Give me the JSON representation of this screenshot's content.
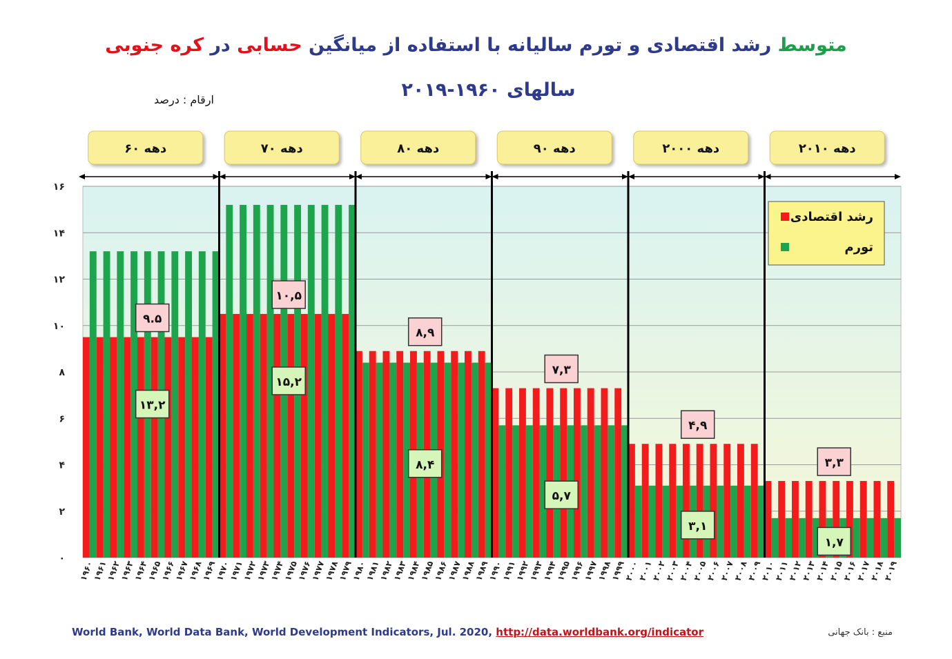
{
  "title": {
    "line1_parts": [
      {
        "text": "متوسط",
        "color": "green"
      },
      {
        "text": " رشد اقتصادی و تورم سالیانه با استفاده از میانگین ",
        "color": "blue"
      },
      {
        "text": "حسابی",
        "color": "red"
      },
      {
        "text": " در ",
        "color": "blue"
      },
      {
        "text": "کره جنوبی",
        "color": "red"
      }
    ],
    "line2": "سالهای ۱۹۶۰-۲۰۱۹"
  },
  "unit_note": "ارقام : درصد",
  "source_en": "World Bank, World Data Bank, World Development Indicators, Jul. 2020, ",
  "source_link": "http://data.worldbank.org/indicator",
  "source_fa": "منبع : بانک جهانی",
  "colors": {
    "growth": "#f21c1c",
    "inflation": "#1ea44c",
    "decade_box": "#fbf09a",
    "legend_bg": "#fbf48c",
    "growth_label_bg": "#fbd2d4",
    "inflation_label_bg": "#d6f5b9",
    "plot_top": "#d9f3f1",
    "plot_bottom": "#f7f7d6"
  },
  "chart_data": {
    "type": "bar",
    "ylim": [
      0,
      16
    ],
    "y_ticks": [
      0,
      2,
      4,
      6,
      8,
      10,
      12,
      14,
      16
    ],
    "y_tick_labels": [
      "۰",
      "۲",
      "۴",
      "۶",
      "۸",
      "۱۰",
      "۱۲",
      "۱۴",
      "۱۶"
    ],
    "x_tick_labels": [
      "۱۹۶۰",
      "۱۹۶۱",
      "۱۹۶۲",
      "۱۹۶۳",
      "۱۹۶۴",
      "۱۹۶۵",
      "۱۹۶۶",
      "۱۹۶۷",
      "۱۹۶۸",
      "۱۹۶۹",
      "۱۹۷۰",
      "۱۹۷۱",
      "۱۹۷۲",
      "۱۹۷۳",
      "۱۹۷۴",
      "۱۹۷۵",
      "۱۹۷۶",
      "۱۹۷۷",
      "۱۹۷۸",
      "۱۹۷۹",
      "۱۹۸۰",
      "۱۹۸۱",
      "۱۹۸۲",
      "۱۹۸۳",
      "۱۹۸۴",
      "۱۹۸۵",
      "۱۹۸۶",
      "۱۹۸۷",
      "۱۹۸۸",
      "۱۹۸۹",
      "۱۹۹۰",
      "۱۹۹۱",
      "۱۹۹۲",
      "۱۹۹۳",
      "۱۹۹۴",
      "۱۹۹۵",
      "۱۹۹۶",
      "۱۹۹۷",
      "۱۹۹۸",
      "۱۹۹۹",
      "۲۰۰۰",
      "۲۰۰۱",
      "۲۰۰۲",
      "۲۰۰۳",
      "۲۰۰۴",
      "۲۰۰۵",
      "۲۰۰۶",
      "۲۰۰۷",
      "۲۰۰۸",
      "۲۰۰۹",
      "۲۰۱۰",
      "۲۰۱۱",
      "۲۰۱۲",
      "۲۰۱۳",
      "۲۰۱۴",
      "۲۰۱۵",
      "۲۰۱۶",
      "۲۰۱۷",
      "۲۰۱۸",
      "۲۰۱۹"
    ],
    "decades": [
      {
        "label": "دهه ۶۰",
        "growth": 9.5,
        "inflation": 13.2,
        "growth_label": "۹.۵",
        "inflation_label": "۱۳,۲"
      },
      {
        "label": "دهه ۷۰",
        "growth": 10.5,
        "inflation": 15.2,
        "growth_label": "۱۰,۵",
        "inflation_label": "۱۵,۲"
      },
      {
        "label": "دهه ۸۰",
        "growth": 8.9,
        "inflation": 8.4,
        "growth_label": "۸,۹",
        "inflation_label": "۸,۴"
      },
      {
        "label": "دهه ۹۰",
        "growth": 7.3,
        "inflation": 5.7,
        "growth_label": "۷,۳",
        "inflation_label": "۵,۷"
      },
      {
        "label": "دهه ۲۰۰۰",
        "growth": 4.9,
        "inflation": 3.1,
        "growth_label": "۴,۹",
        "inflation_label": "۳,۱"
      },
      {
        "label": "دهه ۲۰۱۰",
        "growth": 3.3,
        "inflation": 1.7,
        "growth_label": "۳,۳",
        "inflation_label": "۱,۷"
      }
    ],
    "series": [
      {
        "name": "رشد اقتصادی"
      },
      {
        "name": "تورم"
      }
    ],
    "legend_position": "top-right",
    "grid": true
  }
}
